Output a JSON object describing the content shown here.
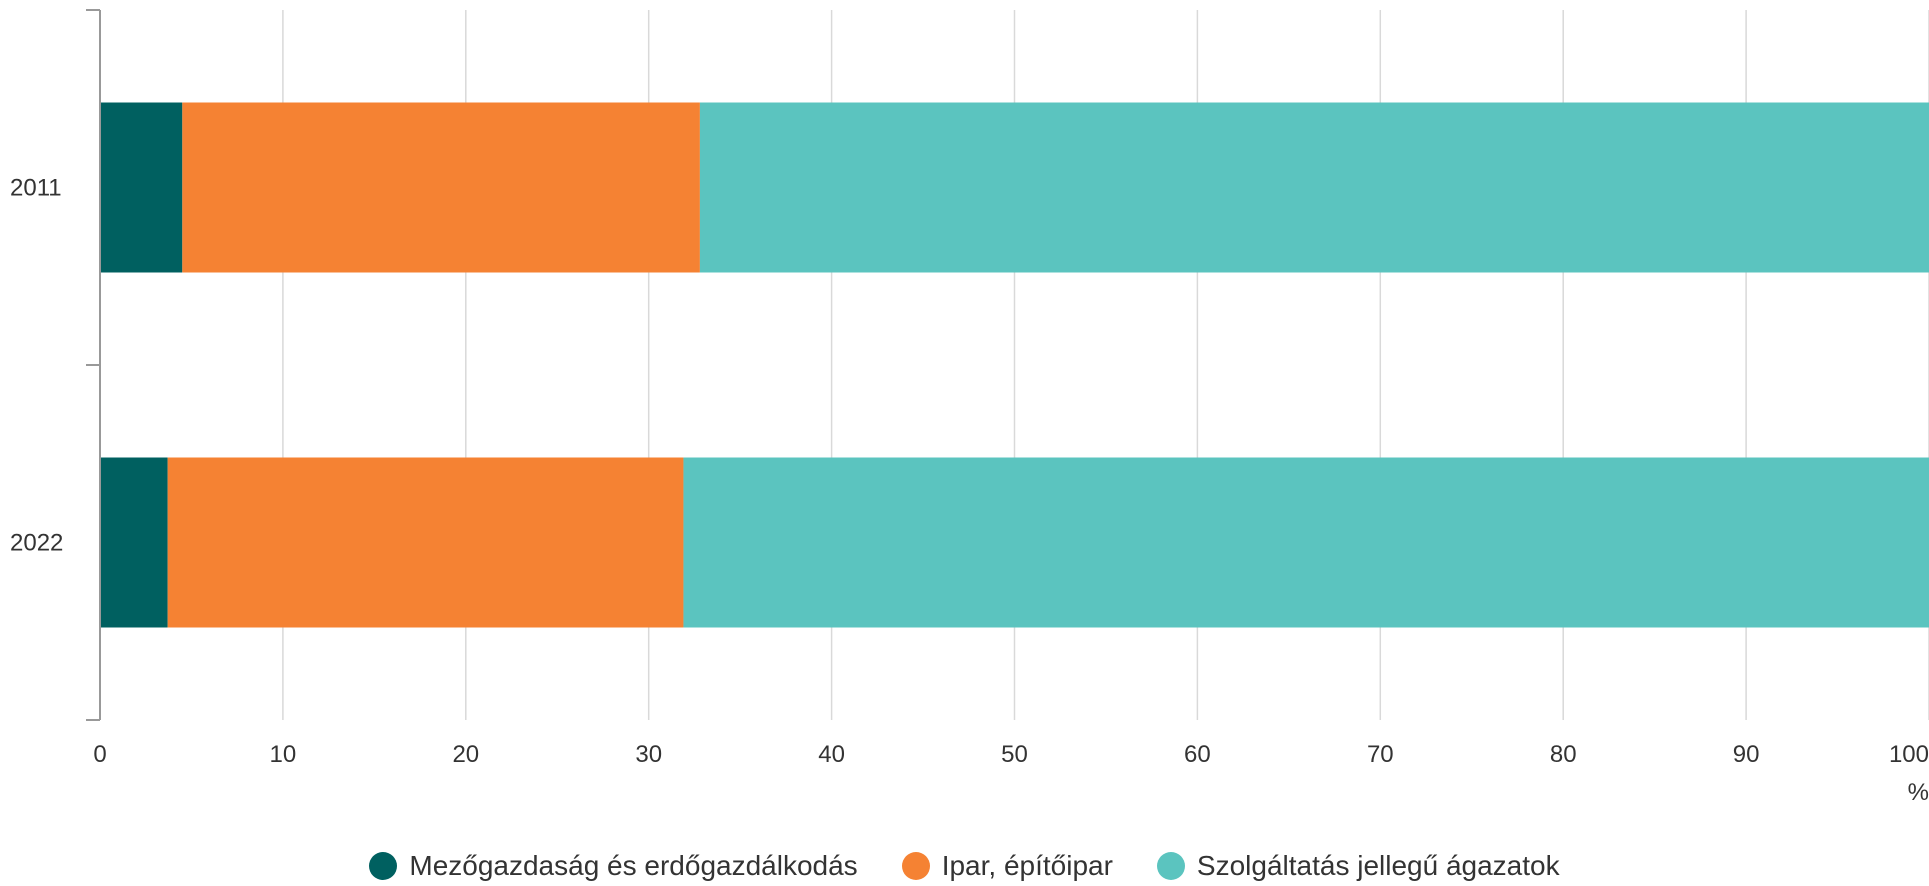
{
  "chart_data": {
    "type": "bar",
    "orientation": "horizontal",
    "stacked": true,
    "categories": [
      "2011",
      "2022"
    ],
    "series": [
      {
        "name": "Mezőgazdaság és erdőgazdálkodás",
        "color": "#006060",
        "values": [
          4.5,
          3.7
        ]
      },
      {
        "name": "Ipar, építőipar",
        "color": "#F58233",
        "values": [
          28.3,
          28.2
        ]
      },
      {
        "name": "Szolgáltatás jellegű ágazatok",
        "color": "#5BC4BF",
        "values": [
          67.2,
          68.1
        ]
      }
    ],
    "x_ticks": [
      "0",
      "10",
      "20",
      "30",
      "40",
      "50",
      "60",
      "70",
      "80",
      "90",
      "100"
    ],
    "xlim": [
      0,
      100
    ],
    "x_unit": "%",
    "grid": true,
    "legend_position": "bottom"
  }
}
